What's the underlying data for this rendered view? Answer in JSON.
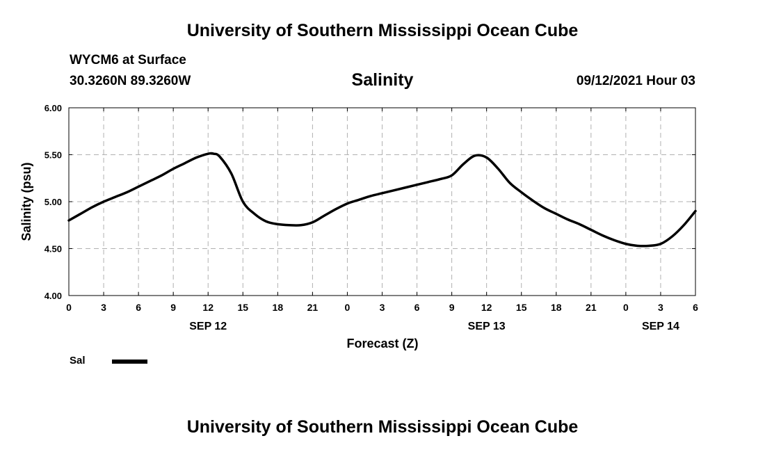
{
  "header": {
    "title": "University of Southern Mississippi Ocean Cube",
    "station": "WYCM6 at Surface",
    "coords": "30.3260N  89.3260W",
    "chart_title": "Salinity",
    "datetime": "09/12/2021 Hour 03"
  },
  "footer": {
    "title": "University of Southern Mississippi Ocean Cube"
  },
  "legend": {
    "label": "Sal"
  },
  "chart_data": {
    "type": "line",
    "title": "Salinity",
    "xlabel": "Forecast (Z)",
    "ylabel": "Salinity (psu)",
    "ylim": [
      4.0,
      6.0
    ],
    "yticks": [
      "6.00",
      "5.50",
      "5.00",
      "4.50",
      "4.00"
    ],
    "xlim": [
      0,
      54
    ],
    "xtick_labels": [
      "0",
      "3",
      "6",
      "9",
      "12",
      "15",
      "18",
      "21",
      "0",
      "3",
      "6",
      "9",
      "12",
      "15",
      "18",
      "21",
      "0",
      "3",
      "6"
    ],
    "date_labels": [
      {
        "label": "SEP 12",
        "hour": 12
      },
      {
        "label": "SEP 13",
        "hour": 36
      },
      {
        "label": "SEP 14",
        "hour": 51
      }
    ],
    "grid": true,
    "series": [
      {
        "name": "Sal",
        "color": "#000000",
        "x": [
          0,
          1,
          2,
          3,
          4,
          5,
          6,
          7,
          8,
          9,
          10,
          11,
          12,
          12.5,
          13,
          14,
          15,
          16,
          17,
          18,
          19,
          20,
          21,
          22,
          23,
          24,
          25,
          26,
          27,
          28,
          29,
          30,
          31,
          32,
          33,
          34,
          35,
          36,
          37,
          38,
          39,
          40,
          41,
          42,
          43,
          44,
          45,
          46,
          47,
          48,
          49,
          50,
          51,
          52,
          53,
          54
        ],
        "values": [
          4.8,
          4.87,
          4.94,
          5.0,
          5.05,
          5.1,
          5.16,
          5.22,
          5.28,
          5.35,
          5.41,
          5.47,
          5.51,
          5.51,
          5.48,
          5.3,
          5.0,
          4.87,
          4.79,
          4.76,
          4.75,
          4.75,
          4.78,
          4.85,
          4.92,
          4.98,
          5.02,
          5.06,
          5.09,
          5.12,
          5.15,
          5.18,
          5.21,
          5.24,
          5.28,
          5.4,
          5.49,
          5.47,
          5.35,
          5.2,
          5.1,
          5.01,
          4.93,
          4.87,
          4.81,
          4.76,
          4.7,
          4.64,
          4.59,
          4.55,
          4.53,
          4.53,
          4.55,
          4.63,
          4.75,
          4.9
        ]
      }
    ]
  }
}
